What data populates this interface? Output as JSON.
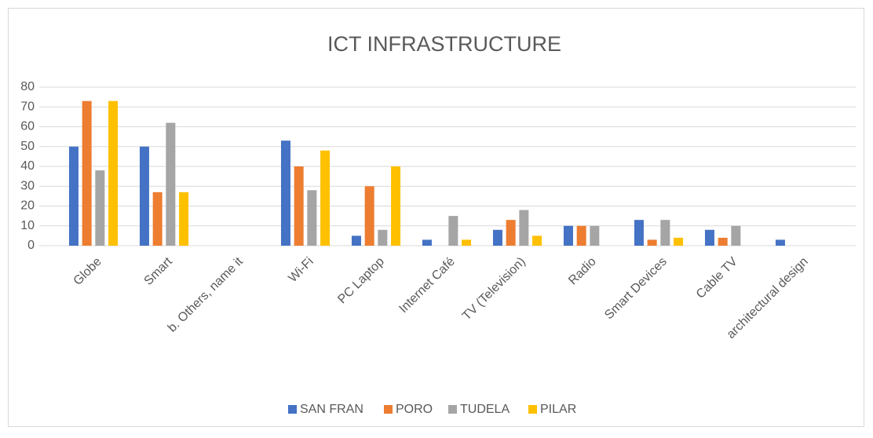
{
  "chart_data": {
    "type": "bar",
    "title": "ICT INFRASTRUCTURE",
    "categories": [
      "Globe",
      "Smart",
      "b. Others, name it",
      "Wi-Fi",
      "PC Laptop",
      "Internet Café",
      "TV (Television)",
      "Radio",
      "Smart Devices",
      "Cable TV",
      "architectural design"
    ],
    "series": [
      {
        "name": "SAN FRAN",
        "color": "#4472c4",
        "values": [
          50,
          50,
          0,
          53,
          5,
          3,
          8,
          10,
          13,
          8,
          3
        ]
      },
      {
        "name": "PORO",
        "color": "#ed7d31",
        "values": [
          73,
          27,
          0,
          40,
          30,
          0,
          13,
          10,
          3,
          4,
          0
        ]
      },
      {
        "name": "TUDELA",
        "color": "#a5a5a5",
        "values": [
          38,
          62,
          0,
          28,
          8,
          15,
          18,
          10,
          13,
          10,
          0
        ]
      },
      {
        "name": "PILAR",
        "color": "#ffc000",
        "values": [
          73,
          27,
          0,
          48,
          40,
          3,
          5,
          0,
          4,
          0,
          0
        ]
      }
    ],
    "ylim": [
      0,
      80
    ],
    "yticks": [
      0,
      10,
      20,
      30,
      40,
      50,
      60,
      70,
      80
    ],
    "grid": true,
    "legend": "bottom"
  }
}
